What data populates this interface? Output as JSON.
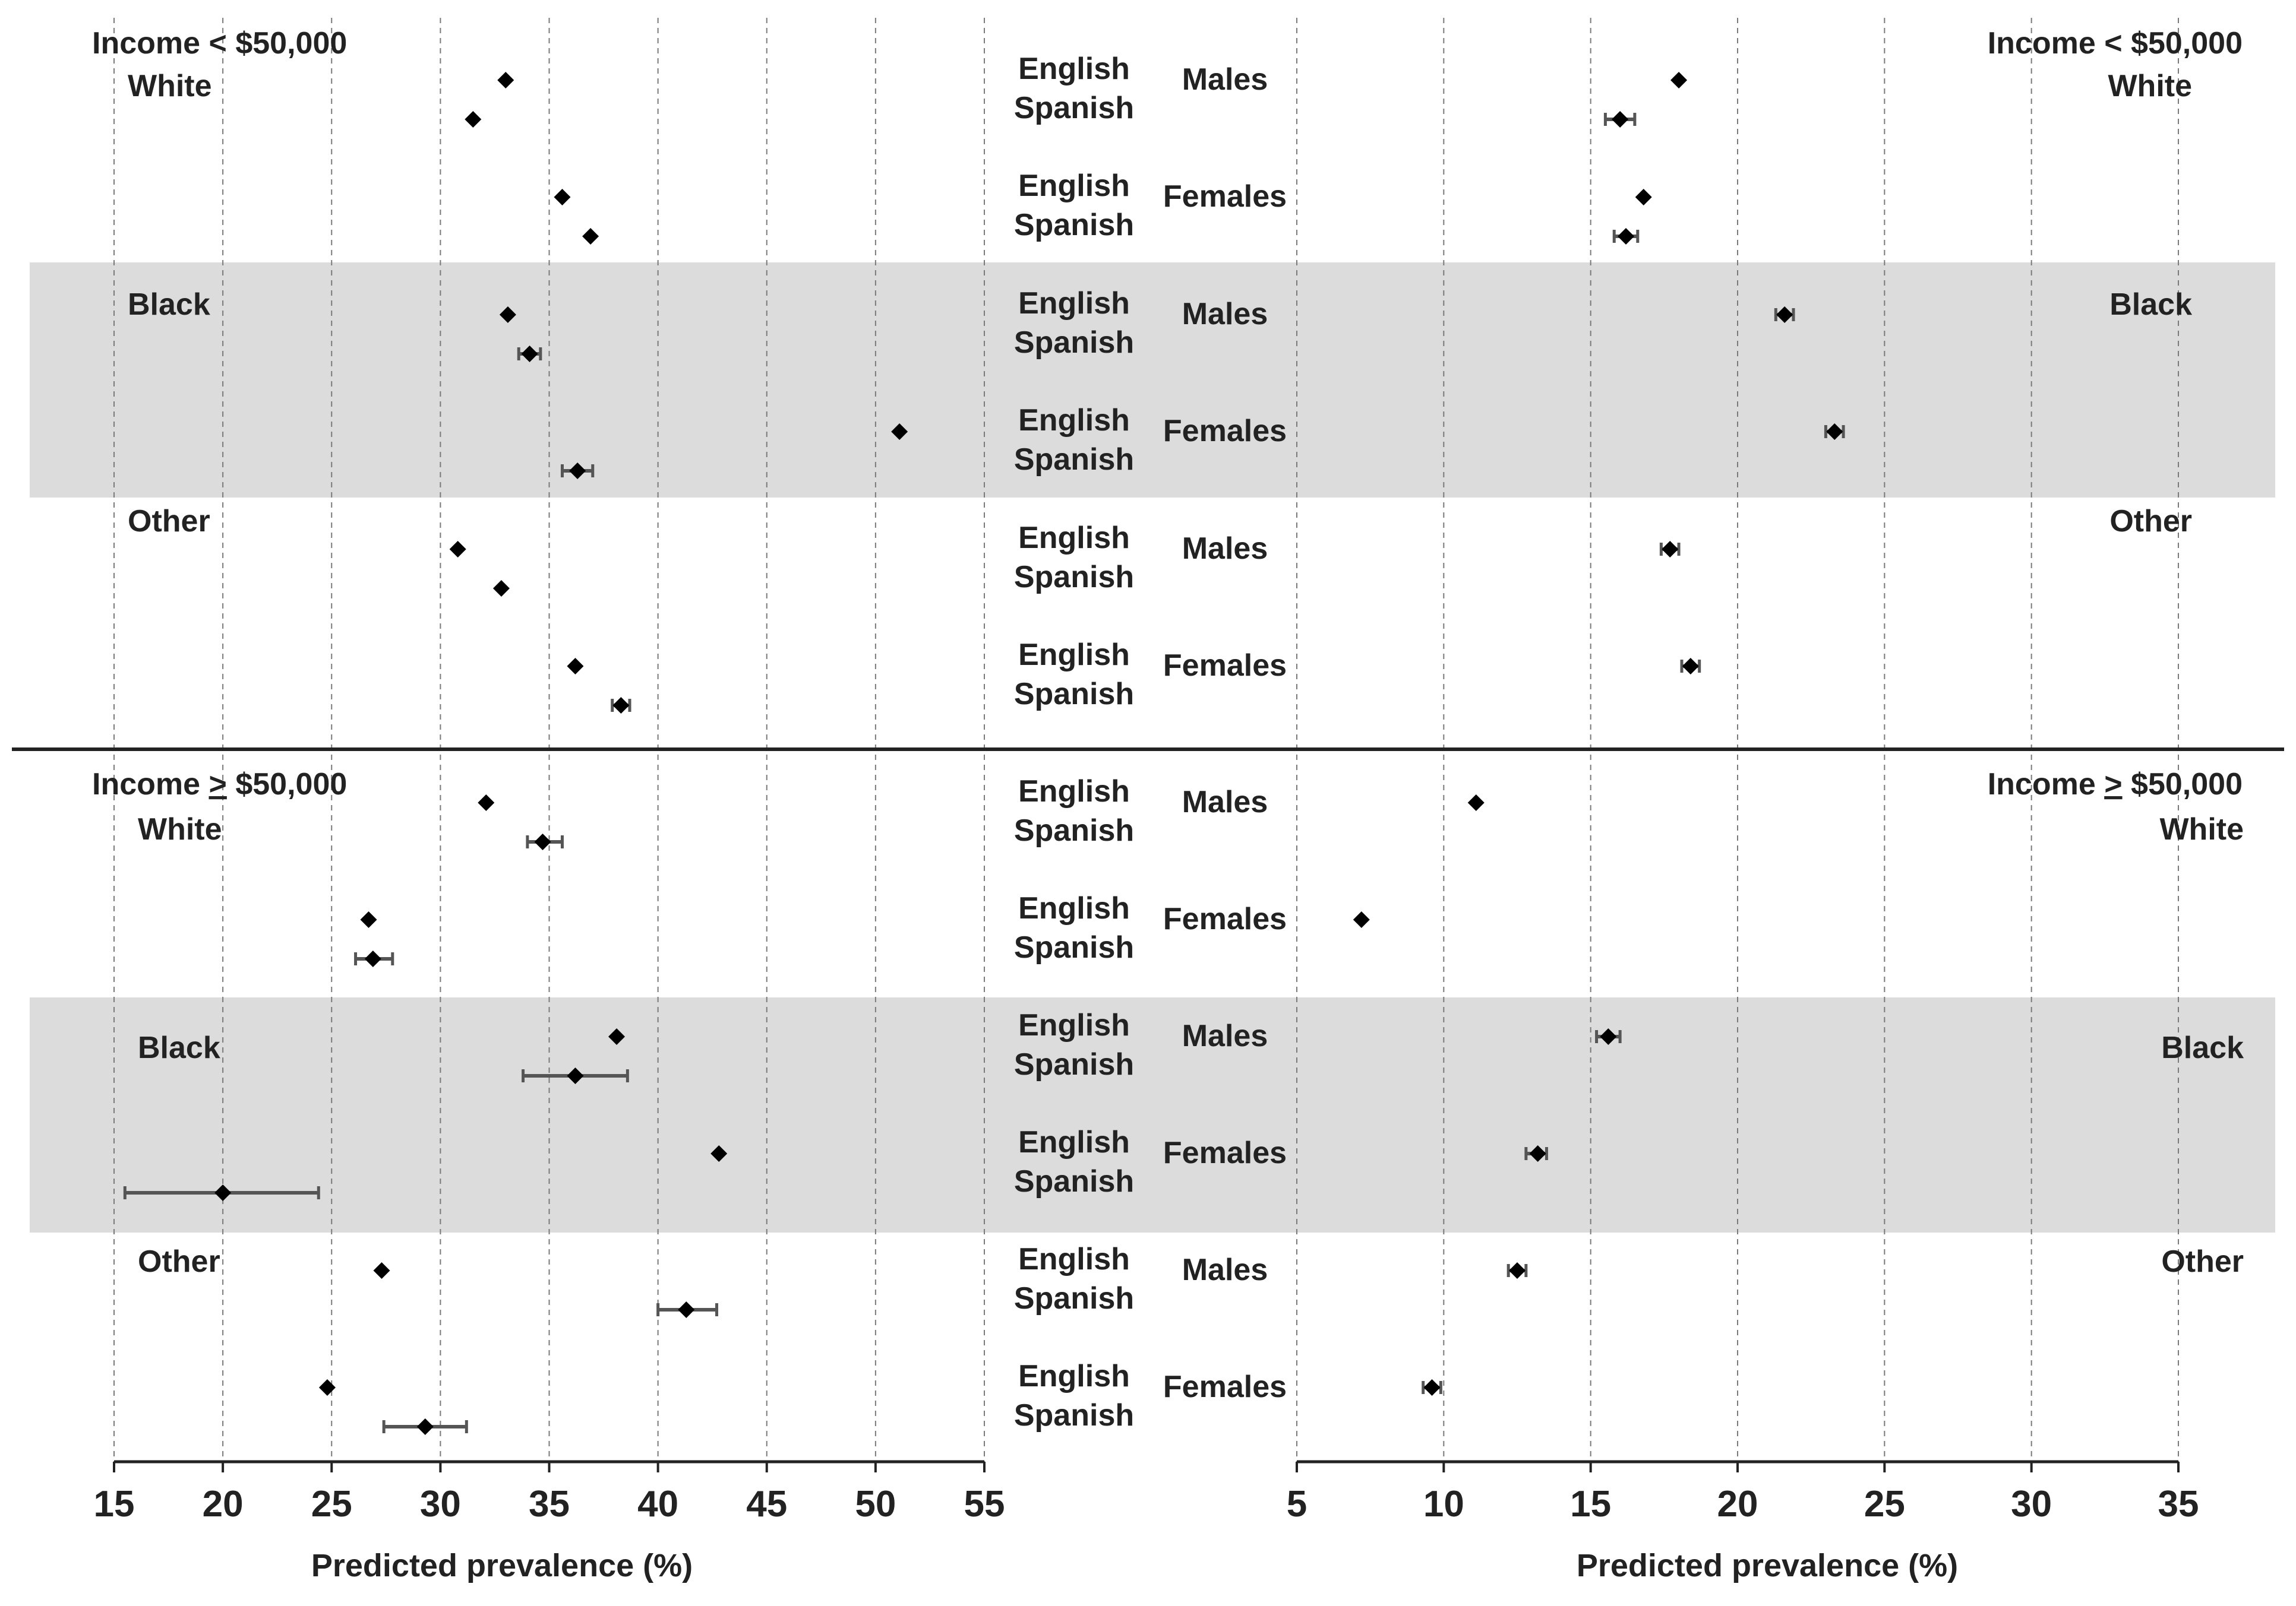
{
  "colors": {
    "band": "#dcdcdc",
    "point": "#000000",
    "error_bar": "#555555",
    "text": "#222222"
  },
  "row_labels": {
    "language": [
      "English",
      "Spanish"
    ],
    "sex": [
      "Males",
      "Females"
    ]
  },
  "section_labels": {
    "low_income": {
      "left": "Income < $50,000",
      "right": "Income < $50,000"
    },
    "high_income": {
      "prefix": "Income ",
      "ge": ">",
      "suffix": " $50,000"
    }
  },
  "race_labels": [
    "White",
    "Black",
    "Other"
  ],
  "chart_data": [
    {
      "type": "scatter",
      "name": "left-panel",
      "xlabel": "Predicted prevalence (%)",
      "xlim": [
        15,
        55
      ],
      "xticks": [
        15,
        20,
        25,
        30,
        35,
        40,
        45,
        50,
        55
      ],
      "grid": true,
      "series": [
        {
          "income": "<$50,000",
          "race": "White",
          "sex": "Males",
          "English": {
            "v": 33.0
          },
          "Spanish": {
            "v": 31.5
          }
        },
        {
          "income": "<$50,000",
          "race": "White",
          "sex": "Females",
          "English": {
            "v": 35.6
          },
          "Spanish": {
            "v": 36.9
          }
        },
        {
          "income": "<$50,000",
          "race": "Black",
          "sex": "Males",
          "English": {
            "v": 33.1
          },
          "Spanish": {
            "v": 34.1,
            "lo": 33.6,
            "hi": 34.6
          }
        },
        {
          "income": "<$50,000",
          "race": "Black",
          "sex": "Females",
          "English": {
            "v": 51.1
          },
          "Spanish": {
            "v": 36.3,
            "lo": 35.6,
            "hi": 37.0
          }
        },
        {
          "income": "<$50,000",
          "race": "Other",
          "sex": "Males",
          "English": {
            "v": 30.8
          },
          "Spanish": {
            "v": 32.8
          }
        },
        {
          "income": "<$50,000",
          "race": "Other",
          "sex": "Females",
          "English": {
            "v": 36.2
          },
          "Spanish": {
            "v": 38.3,
            "lo": 37.9,
            "hi": 38.7
          }
        },
        {
          "income": ">=$50,000",
          "race": "White",
          "sex": "Males",
          "English": {
            "v": 32.1
          },
          "Spanish": {
            "v": 34.7,
            "lo": 34.0,
            "hi": 35.6
          }
        },
        {
          "income": ">=$50,000",
          "race": "White",
          "sex": "Females",
          "English": {
            "v": 26.7
          },
          "Spanish": {
            "v": 26.9,
            "lo": 26.1,
            "hi": 27.8
          }
        },
        {
          "income": ">=$50,000",
          "race": "Black",
          "sex": "Males",
          "English": {
            "v": 38.1
          },
          "Spanish": {
            "v": 36.2,
            "lo": 33.8,
            "hi": 38.6
          }
        },
        {
          "income": ">=$50,000",
          "race": "Black",
          "sex": "Females",
          "English": {
            "v": 42.8
          },
          "Spanish": {
            "v": 20.0,
            "lo": 15.5,
            "hi": 24.4
          }
        },
        {
          "income": ">=$50,000",
          "race": "Other",
          "sex": "Males",
          "English": {
            "v": 27.3
          },
          "Spanish": {
            "v": 41.3,
            "lo": 40.0,
            "hi": 42.7
          }
        },
        {
          "income": ">=$50,000",
          "race": "Other",
          "sex": "Females",
          "English": {
            "v": 24.8
          },
          "Spanish": {
            "v": 29.3,
            "lo": 27.4,
            "hi": 31.2
          }
        }
      ]
    },
    {
      "type": "scatter",
      "name": "right-panel",
      "xlabel": "Predicted prevalence (%)",
      "xlim": [
        5,
        35
      ],
      "xticks": [
        5,
        10,
        15,
        20,
        25,
        30,
        35
      ],
      "grid": true,
      "series": [
        {
          "income": "<$50,000",
          "race": "White",
          "sex": "Males",
          "English": {
            "v": 18.0
          },
          "Spanish": {
            "v": 16.0,
            "lo": 15.5,
            "hi": 16.5
          }
        },
        {
          "income": "<$50,000",
          "race": "White",
          "sex": "Females",
          "English": {
            "v": 16.8
          },
          "Spanish": {
            "v": 16.2,
            "lo": 15.8,
            "hi": 16.6
          }
        },
        {
          "income": "<$50,000",
          "race": "Black",
          "sex": "Males",
          "English": {
            "v": 21.6,
            "lo": 21.3,
            "hi": 21.9
          }
        },
        {
          "income": "<$50,000",
          "race": "Black",
          "sex": "Females",
          "English": {
            "v": 23.3,
            "lo": 23.0,
            "hi": 23.6
          }
        },
        {
          "income": "<$50,000",
          "race": "Other",
          "sex": "Males",
          "English": {
            "v": 17.7,
            "lo": 17.4,
            "hi": 18.0
          }
        },
        {
          "income": "<$50,000",
          "race": "Other",
          "sex": "Females",
          "English": {
            "v": 18.4,
            "lo": 18.1,
            "hi": 18.7
          }
        },
        {
          "income": ">=$50,000",
          "race": "White",
          "sex": "Males",
          "English": {
            "v": 11.1
          }
        },
        {
          "income": ">=$50,000",
          "race": "White",
          "sex": "Females",
          "English": {
            "v": 7.2
          }
        },
        {
          "income": ">=$50,000",
          "race": "Black",
          "sex": "Males",
          "English": {
            "v": 15.6,
            "lo": 15.2,
            "hi": 16.0
          }
        },
        {
          "income": ">=$50,000",
          "race": "Black",
          "sex": "Females",
          "English": {
            "v": 13.2,
            "lo": 12.8,
            "hi": 13.5
          }
        },
        {
          "income": ">=$50,000",
          "race": "Other",
          "sex": "Males",
          "English": {
            "v": 12.5,
            "lo": 12.2,
            "hi": 12.8
          }
        },
        {
          "income": ">=$50,000",
          "race": "Other",
          "sex": "Females",
          "English": {
            "v": 9.6,
            "lo": 9.3,
            "hi": 9.9
          }
        }
      ]
    }
  ]
}
